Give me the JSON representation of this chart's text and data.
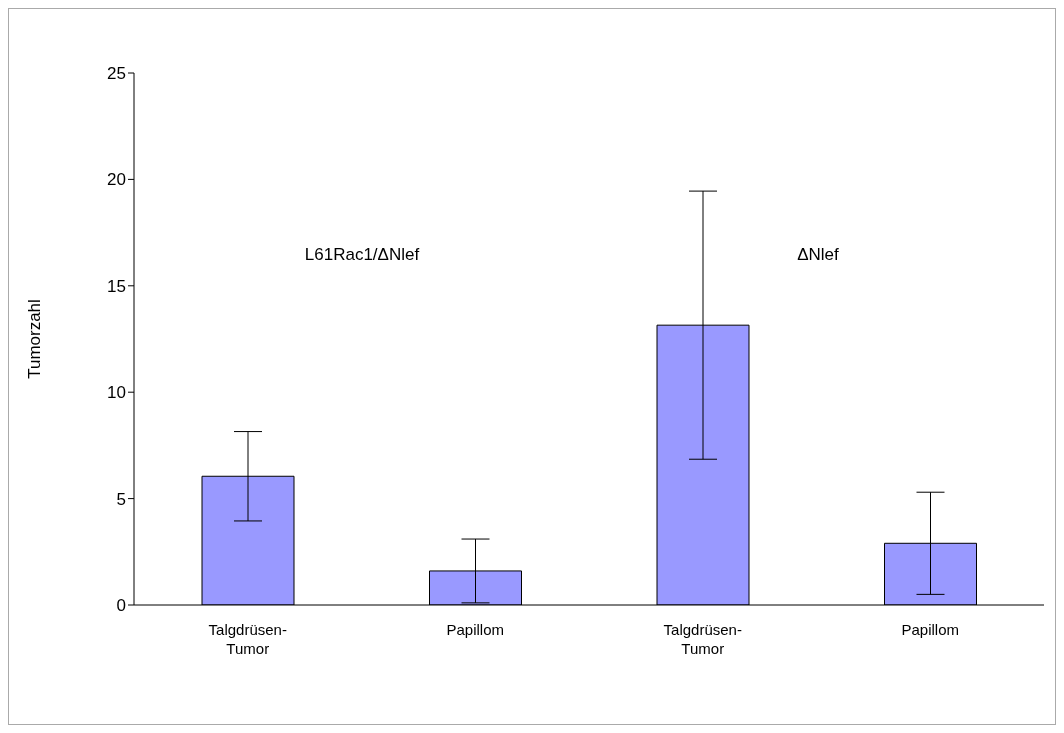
{
  "chart_data": {
    "type": "bar",
    "ylabel": "Tumorzahl",
    "categories": [
      "Talgdrüsen-Tumor",
      "Papillom",
      "Talgdrüsen-Tumor",
      "Papillom"
    ],
    "values": [
      6.05,
      1.6,
      13.15,
      2.9
    ],
    "errors": [
      2.1,
      1.5,
      6.3,
      2.4
    ],
    "color": "#9999ff",
    "ylim": [
      0,
      25
    ],
    "yticks": [
      0,
      5,
      10,
      15,
      20,
      25
    ],
    "annotations": [
      "L61Rac1/ΔNlef",
      "ΔNlef"
    ]
  }
}
